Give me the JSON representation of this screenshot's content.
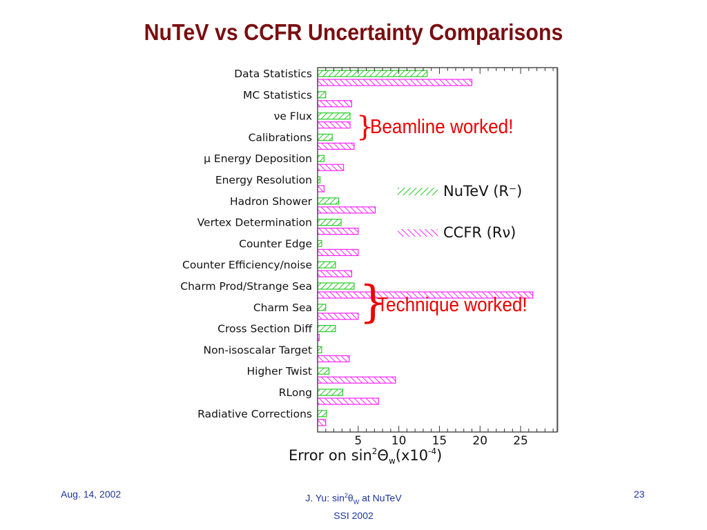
{
  "title": "NuTeV vs CCFR Uncertainty Comparisons",
  "chart_data": {
    "type": "bar",
    "orientation": "horizontal",
    "categories": [
      "Data Statistics",
      "MC Statistics",
      "νe Flux",
      "Calibrations",
      "μ Energy Deposition",
      "Energy Resolution",
      "Hadron Shower",
      "Vertex Determination",
      "Counter Edge",
      "Counter Efficiency/noise",
      "Charm Prod/Strange Sea",
      "Charm Sea",
      "Cross Section Diff",
      "Non-isoscalar Target",
      "Higher Twist",
      "RLong",
      "Radiative Corrections"
    ],
    "series": [
      {
        "name": "NuTeV (R⁻)",
        "color": "#22cc22",
        "values": [
          13.5,
          1.0,
          4.0,
          1.8,
          0.8,
          0.3,
          2.6,
          2.9,
          0.5,
          2.2,
          4.5,
          1.0,
          2.2,
          0.5,
          1.4,
          3.1,
          1.1
        ]
      },
      {
        "name": "CCFR (Rν)",
        "color": "#ff22ff",
        "values": [
          19.0,
          4.2,
          4.0,
          4.5,
          3.2,
          0.8,
          7.1,
          5.0,
          5.0,
          4.2,
          26.5,
          5.0,
          0.2,
          3.9,
          9.6,
          7.5,
          1.0
        ]
      }
    ],
    "xticks": [
      5,
      10,
      15,
      20,
      25
    ],
    "xlim": [
      0,
      29.5
    ],
    "xlabel_main": "Error on sin",
    "xlabel_sup": "2",
    "xlabel_theta": "Θ",
    "xlabel_sub": "w",
    "xlabel_tail": "(x10",
    "xlabel_exp": "-4",
    "xlabel_close": ")",
    "legend_position": "right"
  },
  "annotations": {
    "beamline": "Beamline worked!",
    "technique": "Technique worked!"
  },
  "footer": {
    "date": "Aug. 14, 2002",
    "author_prefix": "J. Yu: sin",
    "author_sup": "2",
    "author_theta": "θ",
    "author_sub": "W",
    "author_suffix": " at NuTeV",
    "event": "SSI 2002",
    "page": "23"
  }
}
